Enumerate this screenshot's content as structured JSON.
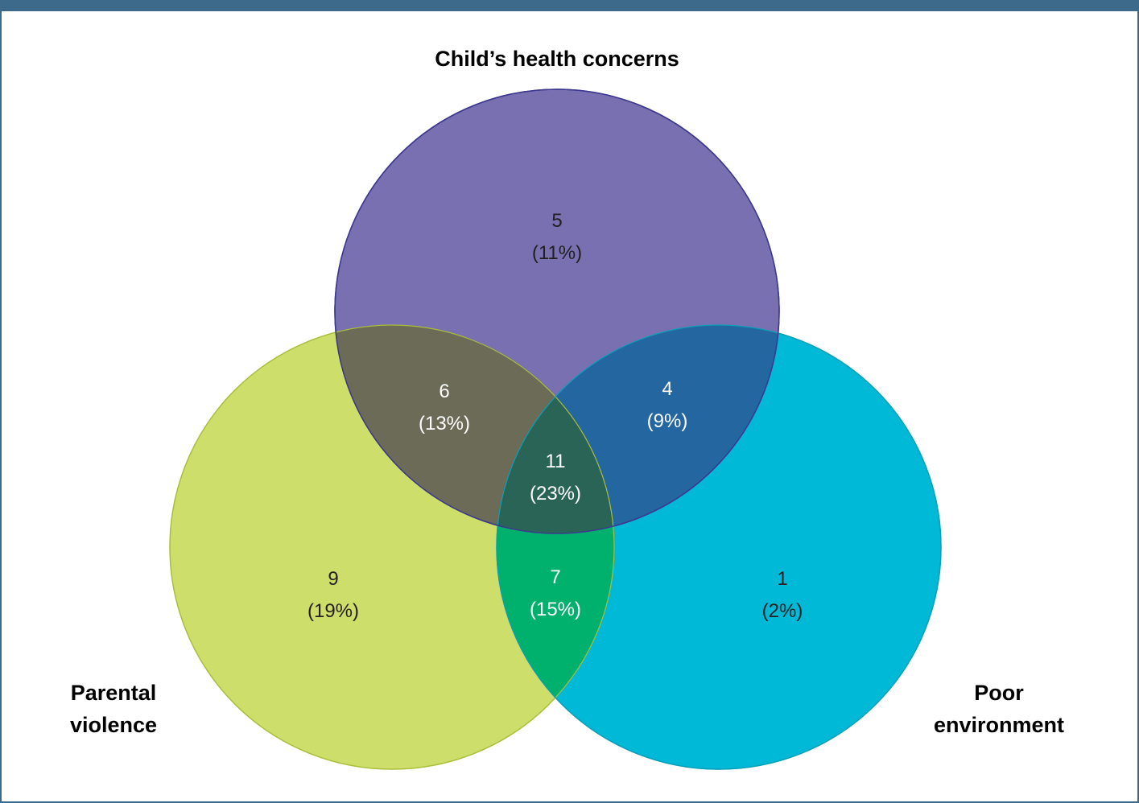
{
  "colors": {
    "frame": "#3d6a8a",
    "health_circle": "#7870b0",
    "violence_circle": "#cddf6a",
    "environment_circle": "#00b9d6",
    "health_violence": "#6b6b58",
    "health_environment": "#2366a0",
    "violence_environment": "#00b06d",
    "all_three": "#2a6457",
    "dark_text": "#231f20",
    "light_text": "#ffffff"
  },
  "sets": {
    "health": {
      "label": "Child’s health concerns"
    },
    "violence": {
      "label_line1": "Parental",
      "label_line2": "violence"
    },
    "environment": {
      "label_line1": "Poor",
      "label_line2": "environment"
    }
  },
  "regions": {
    "health_only": {
      "count": "5",
      "percent": "(11%)"
    },
    "violence_only": {
      "count": "9",
      "percent": "(19%)"
    },
    "environment_only": {
      "count": "1",
      "percent": "(2%)"
    },
    "health_violence": {
      "count": "6",
      "percent": "(13%)"
    },
    "health_environment": {
      "count": "4",
      "percent": "(9%)"
    },
    "violence_environment": {
      "count": "7",
      "percent": "(15%)"
    },
    "all_three": {
      "count": "11",
      "percent": "(23%)"
    }
  }
}
